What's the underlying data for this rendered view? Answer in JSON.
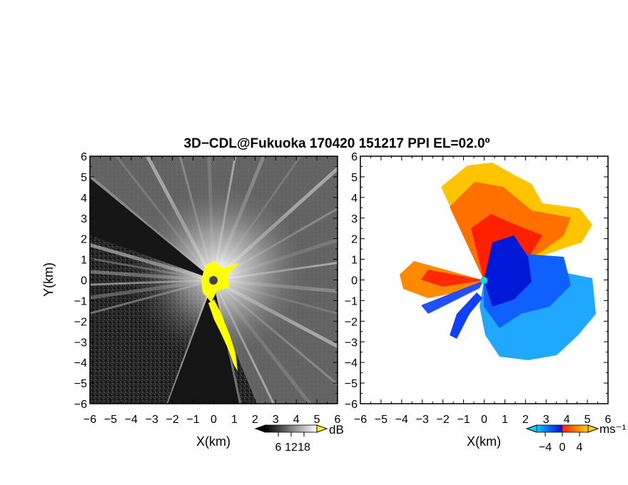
{
  "title": "3D−CDL@Fukuoka 170420 151217 PPI EL=02.0º",
  "chart_data": [
    {
      "type": "heatmap",
      "panel": "left",
      "quantity": "SNR",
      "xlabel": "X(km)",
      "ylabel": "Y(km)",
      "xlim": [
        -6,
        6
      ],
      "ylim": [
        -6,
        6
      ],
      "x_ticks": [
        "−6",
        "−5",
        "−4",
        "−3",
        "−2",
        "−1",
        "0",
        "1",
        "2",
        "3",
        "4",
        "5",
        "6"
      ],
      "y_ticks": [
        "6",
        "5",
        "4",
        "3",
        "2",
        "1",
        "0",
        "−1",
        "−2",
        "−3",
        "−4",
        "−5",
        "−6"
      ],
      "colorbar": {
        "unit": "dB",
        "ticks": [
          "6",
          "12",
          "18"
        ],
        "tick_values": [
          6,
          12,
          18
        ],
        "range": [
          0,
          24
        ]
      },
      "colors": {
        "low": "#000000",
        "high": "#ffffff",
        "flag": "#ffff00"
      }
    },
    {
      "type": "heatmap",
      "panel": "right",
      "quantity": "Doppler velocity",
      "xlabel": "X(km)",
      "xlim": [
        -6,
        6
      ],
      "ylim": [
        -6,
        6
      ],
      "x_ticks": [
        "−6",
        "−5",
        "−4",
        "−3",
        "−2",
        "−1",
        "0",
        "1",
        "2",
        "3",
        "4",
        "5",
        "6"
      ],
      "y_ticks": [
        "6",
        "5",
        "4",
        "3",
        "2",
        "1",
        "0",
        "−1",
        "−2",
        "−3",
        "−4",
        "−5",
        "−6"
      ],
      "colorbar": {
        "unit": "ms⁻¹",
        "ticks": [
          "−4",
          "0",
          "4"
        ],
        "tick_values": [
          -4,
          0,
          4
        ],
        "range": [
          -6,
          6
        ]
      },
      "colors": {
        "neg_far": "#00d0ff",
        "neg_mid": "#1060ff",
        "neg_near": "#0010d0",
        "pos_near": "#ff2000",
        "pos_mid": "#ff7a00",
        "pos_far": "#ffd000",
        "origin": "#00e0e0"
      }
    }
  ]
}
